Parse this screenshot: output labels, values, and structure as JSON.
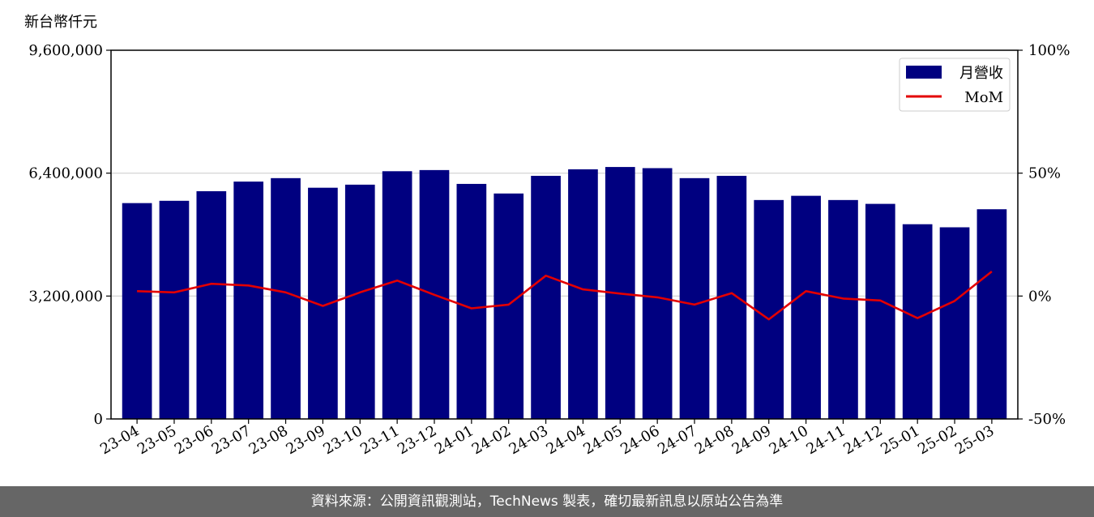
{
  "chart_data": {
    "type": "bar",
    "y_unit_label": "新台幣仟元",
    "categories": [
      "23-04",
      "23-05",
      "23-06",
      "23-07",
      "23-08",
      "23-09",
      "23-10",
      "23-11",
      "23-12",
      "24-01",
      "24-02",
      "24-03",
      "24-04",
      "24-05",
      "24-06",
      "24-07",
      "24-08",
      "24-09",
      "24-10",
      "24-11",
      "24-12",
      "25-01",
      "25-02",
      "25-03"
    ],
    "series": [
      {
        "name": "月營收",
        "axis": "left",
        "kind": "bar",
        "color": "#000080",
        "values": [
          5620000,
          5680000,
          5930000,
          6180000,
          6270000,
          6020000,
          6100000,
          6450000,
          6480000,
          6120000,
          5870000,
          6330000,
          6500000,
          6560000,
          6530000,
          6270000,
          6330000,
          5700000,
          5810000,
          5700000,
          5600000,
          5070000,
          4990000,
          5460000
        ]
      },
      {
        "name": "MoM",
        "axis": "right",
        "kind": "line",
        "color": "#e30000",
        "values": [
          2,
          1.5,
          5,
          4.3,
          1.5,
          -4,
          1.5,
          6.3,
          0.5,
          -5,
          -3.5,
          8.3,
          2.7,
          1,
          -0.5,
          -3.5,
          1.2,
          -9.5,
          2,
          -1,
          -1.8,
          -9,
          -2,
          10
        ]
      }
    ],
    "ylim_left": [
      0,
      9600000
    ],
    "yticks_left": [
      "0",
      "3,200,000",
      "6,400,000",
      "9,600,000"
    ],
    "ylim_right": [
      -50,
      100
    ],
    "yticks_right": [
      "-50%",
      "0%",
      "50%",
      "100%"
    ],
    "grid": "horizontal",
    "legend_position": "top-right"
  },
  "footer": {
    "source_text": "資料來源：公開資訊觀測站，TechNews 製表，確切最新訊息以原站公告為準"
  }
}
